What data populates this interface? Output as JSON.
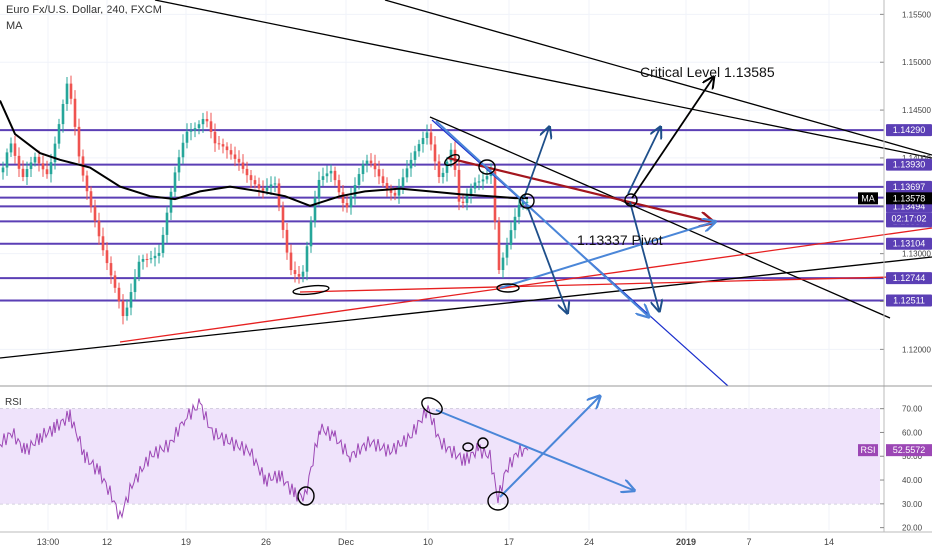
{
  "header": {
    "title": "Euro Fx/U.S. Dollar, 240, FXCM",
    "indicator": "MA"
  },
  "annotations": {
    "critical": "Critical Level 1.13585",
    "pivot": "1.13337 Pivot"
  },
  "rsi_label": "RSI",
  "colors": {
    "candle_up": "#26a69a",
    "candle_down": "#ef5350",
    "level_line": "#5b3fb5",
    "moving_average": "#000000",
    "rsi_line": "#9c47b5",
    "rsi_band": "#efe3fb",
    "trend_red": "#e62020",
    "trend_maroon": "#a3161e",
    "arrow_light": "#4a86d8",
    "arrow_dark": "#1e4f8a",
    "pivot_blue": "#1a2ecc"
  },
  "chart_data": [
    {
      "type": "candlestick",
      "title": "Euro Fx/U.S. Dollar, 240, FXCM",
      "indicator": "MA",
      "x_ticks": [
        "13:00",
        "12",
        "19",
        "26",
        "Dec",
        "10",
        "17",
        "24",
        "2019",
        "7",
        "14"
      ],
      "y_ticks": [
        1.12,
        1.125,
        1.13,
        1.135,
        1.14,
        1.145,
        1.15,
        1.155
      ],
      "ylim": [
        1.1168,
        1.1565
      ],
      "price_levels": [
        {
          "label": "1.14290",
          "value": 1.1429,
          "color": "#5b3fb5"
        },
        {
          "label": "1.13930",
          "value": 1.1393,
          "color": "#5b3fb5"
        },
        {
          "label": "1.13697",
          "value": 1.13697,
          "color": "#5b3fb5"
        },
        {
          "label": "1.13585",
          "value": 1.13585,
          "color": "#5b3fb5"
        },
        {
          "label": "1.13494",
          "value": 1.13494,
          "color": "#5b3fb5"
        },
        {
          "label": "1.13337",
          "value": 1.13337,
          "color": "#5b3fb5"
        },
        {
          "label": "1.13104",
          "value": 1.13104,
          "color": "#5b3fb5"
        },
        {
          "label": "1.12744",
          "value": 1.12744,
          "color": "#5b3fb5"
        },
        {
          "label": "1.12511",
          "value": 1.12511,
          "color": "#5b3fb5"
        }
      ],
      "last_price": {
        "tag": "MA",
        "value": "1.13578"
      },
      "countdown": "02:17:02",
      "grid": true
    },
    {
      "type": "line",
      "title": "RSI",
      "y_ticks": [
        20,
        30,
        40,
        50,
        60,
        70
      ],
      "ylim": [
        19,
        77
      ],
      "band": [
        30,
        70
      ],
      "last_value": "52.5572",
      "grid": true
    }
  ]
}
